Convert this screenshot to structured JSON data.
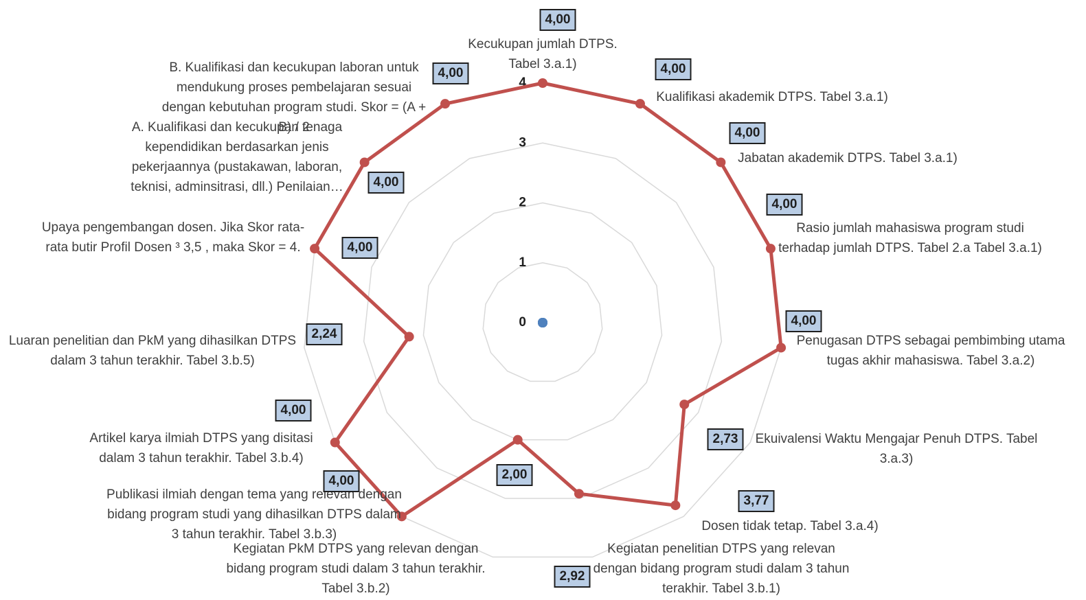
{
  "chart_data": {
    "type": "radar",
    "categories": [
      "Kecukupan jumlah DTPS. Tabel 3.a.1)",
      "Kualifikasi akademik DTPS. Tabel 3.a.1)",
      "Jabatan akademik DTPS. Tabel 3.a.1)",
      "Rasio jumlah mahasiswa program studi terhadap jumlah DTPS. Tabel 2.a Tabel 3.a.1)",
      "Penugasan DTPS sebagai pembimbing utama tugas akhir mahasiswa. Tabel 3.a.2)",
      "Ekuivalensi Waktu Mengajar Penuh DTPS. Tabel 3.a.3)",
      "Dosen tidak tetap. Tabel 3.a.4)",
      "Kegiatan penelitian DTPS yang relevan dengan bidang program studi dalam 3 tahun terakhir. Tabel 3.b.1)",
      "Kegiatan PkM DTPS yang relevan dengan bidang program studi dalam 3 tahun terakhir. Tabel 3.b.2)",
      "Publikasi ilmiah dengan tema yang relevan dengan bidang program studi yang dihasilkan DTPS dalam 3 tahun terakhir. Tabel 3.b.3)",
      "Artikel karya ilmiah DTPS yang disitasi dalam 3 tahun terakhir. Tabel 3.b.4)",
      "Luaran penelitian dan PkM yang dihasilkan DTPS dalam 3 tahun terakhir. Tabel 3.b.5)",
      "Upaya pengembangan dosen. Jika Skor rata-rata butir Profil Dosen ³ 3,5 , maka Skor = 4.",
      "A. Kualifikasi dan kecukupan tenaga kependidikan berdasarkan jenis pekerjaannya (pustakawan, laboran, teknisi, adminsitrasi, dll.) Penilaian…",
      "B. Kualifikasi dan kecukupan laboran untuk mendukung proses pembelajaran sesuai dengan kebutuhan program studi. Skor = (A + B) / 2"
    ],
    "series": [
      {
        "color": "#c0504d",
        "values": [
          4,
          4,
          4,
          4,
          4,
          2.73,
          3.77,
          2.92,
          2,
          4,
          4,
          2.24,
          4,
          4,
          4
        ],
        "value_labels": [
          "4,00",
          "4,00",
          "4,00",
          "4,00",
          "4,00",
          "2,73",
          "3,77",
          "2,92",
          "2,00",
          "4,00",
          "4,00",
          "2,24",
          "4,00",
          "4,00",
          "4,00"
        ]
      },
      {
        "color": "#4f81bd",
        "values": [
          0,
          0,
          0,
          0,
          0,
          0,
          0,
          0,
          0,
          0,
          0,
          0,
          0,
          0,
          0
        ]
      }
    ],
    "ylim": [
      0,
      4
    ],
    "yticks": [
      0,
      1,
      2,
      3,
      4
    ],
    "grid": true
  }
}
